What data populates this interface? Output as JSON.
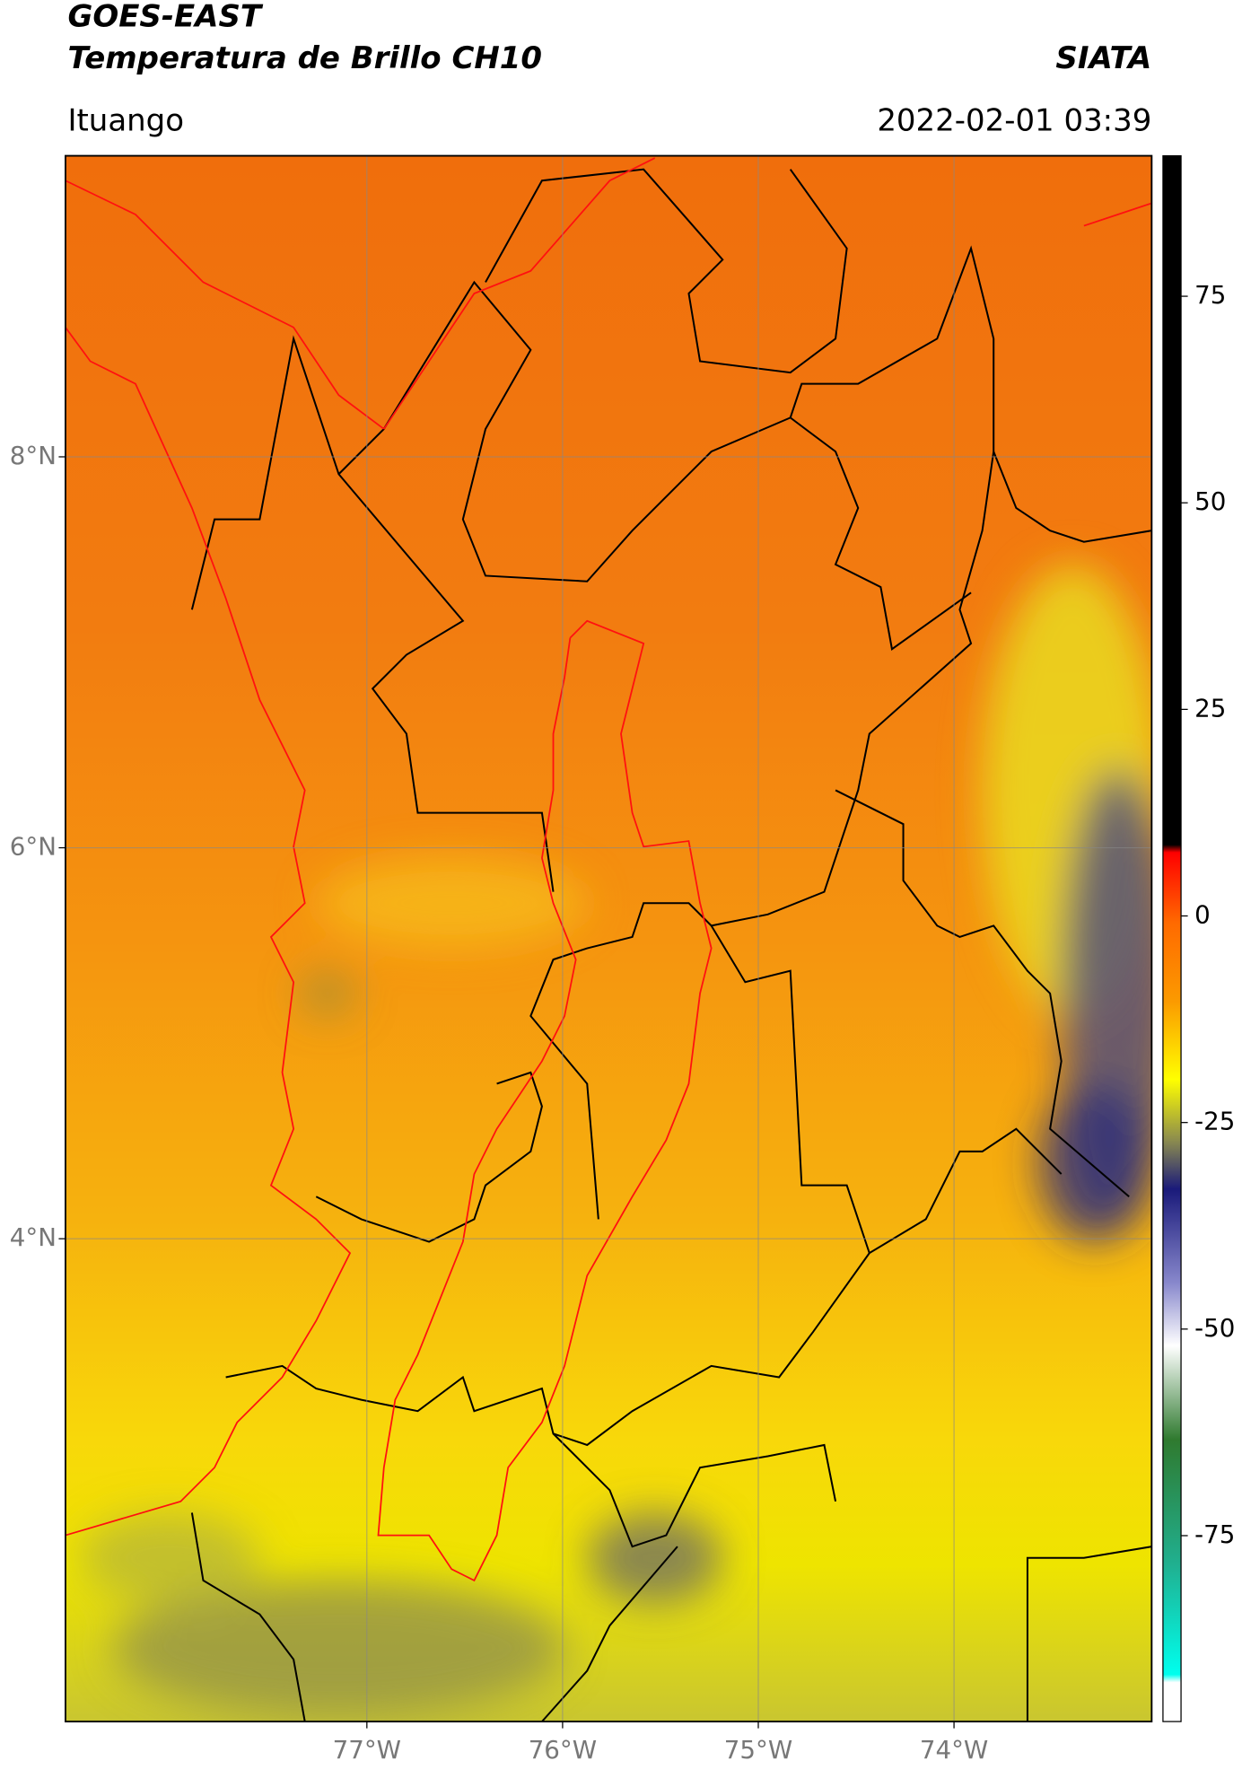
{
  "header": {
    "title": "GOES-EAST",
    "subtitle": "Temperatura de Brillo CH10",
    "source": "SIATA",
    "region": "Ituango",
    "timestamp": "2022-02-01 03:39"
  },
  "map": {
    "xlim": [
      -78.54,
      -72.99
    ],
    "ylim": [
      1.53,
      9.54
    ],
    "xticks": [
      {
        "value": -77,
        "label": "77°W"
      },
      {
        "value": -76,
        "label": "76°W"
      },
      {
        "value": -75,
        "label": "75°W"
      },
      {
        "value": -74,
        "label": "74°W"
      }
    ],
    "yticks": [
      {
        "value": 8,
        "label": "8°N"
      },
      {
        "value": 6,
        "label": "6°N"
      },
      {
        "value": 4,
        "label": "4°N"
      }
    ],
    "grid": true
  },
  "colorbar": {
    "ylim": [
      -97.5,
      92
    ],
    "yticks": [
      -75,
      -50,
      -25,
      0,
      25,
      50,
      75
    ]
  }
}
